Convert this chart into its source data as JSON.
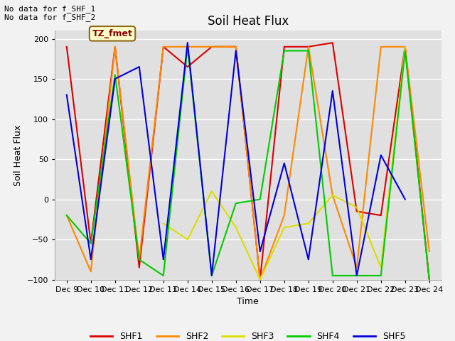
{
  "title": "Soil Heat Flux",
  "ylabel": "Soil Heat Flux",
  "xlabel": "Time",
  "ylim": [
    -100,
    210
  ],
  "yticks": [
    -100,
    -50,
    0,
    50,
    100,
    150,
    200
  ],
  "note1": "No data for f_SHF_1",
  "note2": "No data for f_SHF_2",
  "tz_label": "TZ_fmet",
  "colors": {
    "SHF1": "#dd0000",
    "SHF2": "#ff8800",
    "SHF3": "#dddd00",
    "SHF4": "#00cc00",
    "SHF5": "#0000dd"
  },
  "xtick_labels": [
    "Dec 9",
    "Dec 10",
    "Dec 11",
    "Dec 12",
    "Dec 13",
    "Dec 14",
    "Dec 15",
    "Dec 16",
    "Dec 17",
    "Dec 18",
    "Dec 19",
    "Dec 20",
    "Dec 21",
    "Dec 22",
    "Dec 23",
    "Dec 24"
  ],
  "SHF1_x": [
    9,
    10,
    11,
    12,
    13,
    14,
    15,
    16,
    17,
    18,
    19,
    20,
    21,
    22,
    23,
    24
  ],
  "SHF1_y": [
    190,
    -55,
    190,
    -85,
    190,
    165,
    190,
    190,
    -100,
    190,
    190,
    195,
    -15,
    -20,
    190,
    -100
  ],
  "SHF2_x": [
    9,
    10,
    11,
    12,
    13,
    14,
    15,
    16,
    17,
    18,
    19,
    20,
    21,
    22,
    23,
    24
  ],
  "SHF2_y": [
    -20,
    -90,
    190,
    -75,
    190,
    190,
    190,
    190,
    -100,
    -20,
    190,
    5,
    -85,
    190,
    190,
    -65
  ],
  "SHF3_x": [
    13,
    14,
    15,
    16,
    17,
    18,
    19,
    20,
    21,
    22,
    23
  ],
  "SHF3_y": [
    -30,
    -50,
    10,
    -35,
    -100,
    -35,
    -30,
    5,
    -10,
    -85,
    190
  ],
  "SHF4_x": [
    9,
    10,
    11,
    12,
    13,
    14,
    15,
    16,
    17,
    18,
    19,
    20,
    21,
    22,
    23,
    24
  ],
  "SHF4_y": [
    -20,
    -55,
    155,
    -75,
    -95,
    190,
    -95,
    -5,
    0,
    185,
    185,
    -95,
    -95,
    -95,
    185,
    -100
  ],
  "SHF5_x": [
    9,
    10,
    11,
    12,
    13,
    14,
    15,
    16,
    17,
    18,
    19,
    20,
    21,
    22,
    23
  ],
  "SHF5_y": [
    130,
    -75,
    150,
    165,
    -75,
    195,
    -95,
    185,
    -65,
    45,
    -75,
    135,
    -95,
    55,
    0
  ],
  "fig_bg": "#f2f2f2",
  "plot_bg": "#e0e0e0",
  "grid_color": "#ffffff",
  "title_fontsize": 12,
  "label_fontsize": 9,
  "tick_fontsize": 8,
  "legend_fontsize": 9,
  "linewidth": 1.5
}
